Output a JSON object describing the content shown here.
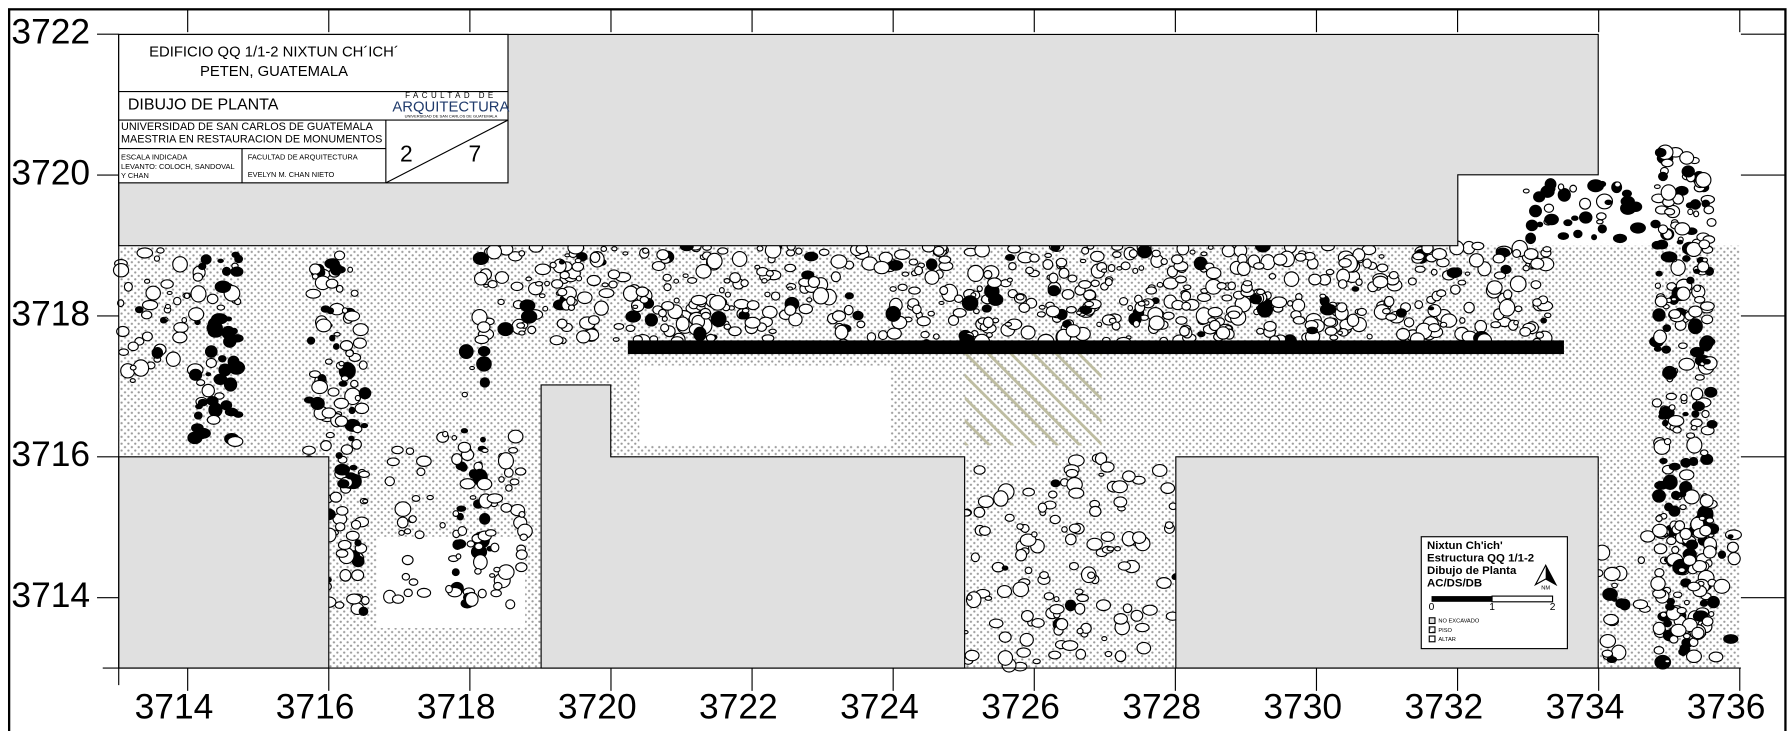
{
  "axes": {
    "xticks": [
      3714,
      3716,
      3718,
      3720,
      3722,
      3724,
      3726,
      3728,
      3730,
      3732,
      3734,
      3736
    ],
    "yticks": [
      3722,
      3720,
      3718,
      3716,
      3714
    ]
  },
  "title_block": {
    "title": "EDIFICIO QQ 1/1-2 NIXTUN CH´ICH´",
    "location": "PETEN, GUATEMALA",
    "drawing": "DIBUJO DE PLANTA",
    "logo_top": "FACULTAD DE",
    "logo_main": "ARQUITECTURA",
    "logo_sub": "UNIVERSIDAD DE SAN CARLOS DE GUATEMALA",
    "university": "UNIVERSIDAD DE SAN CARLOS DE GUATEMALA",
    "program": "MAESTRIA EN RESTAURACION DE MONUMENTOS",
    "scale": "ESCALA INDICADA",
    "survey": "LEVANTO: COLOCH, SANDOVAL",
    "survey2": "Y CHAN",
    "faculty": "FACULTAD DE ARQUITECTURA",
    "author": "EVELYN M. CHAN NIETO",
    "sheet": "2",
    "sheets": "7"
  },
  "legend": {
    "site": "Nixtun Ch'ich'",
    "structure": "Estructura QQ 1/1-2",
    "drawing": "Dibujo de Planta",
    "authors": "AC/DS/DB",
    "north": "NM",
    "scale_labels": [
      "0",
      "1",
      "2"
    ],
    "items": [
      "NO EXCAVADO",
      "PISO",
      "ALTAR"
    ]
  }
}
